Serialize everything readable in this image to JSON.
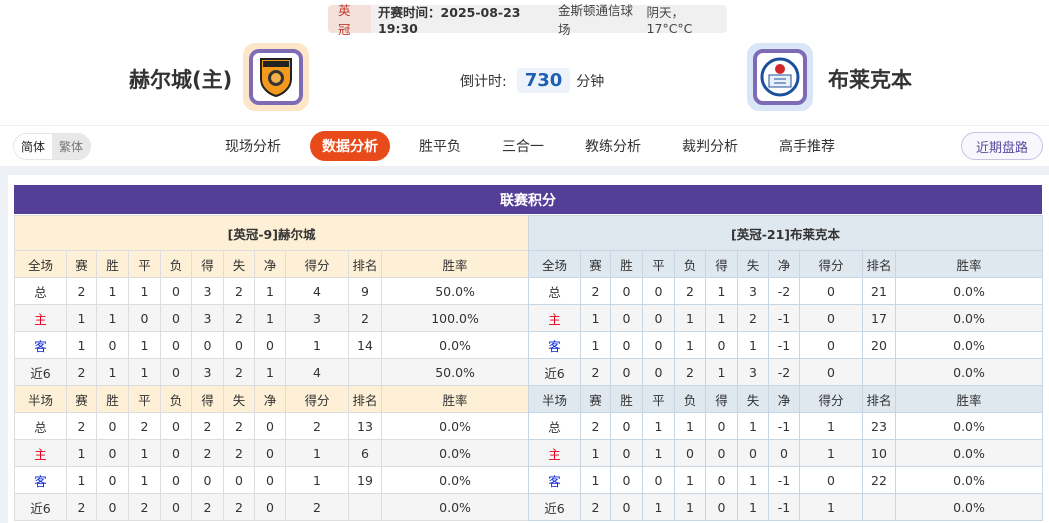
{
  "match": {
    "league": "英冠",
    "time": "开赛时间：2025-08-23 19:30",
    "venue": "金斯顿通信球场",
    "weather": "阴天， 17°C°C"
  },
  "home": {
    "name": "赫尔城(主)",
    "logo_text": "HULL CITY"
  },
  "away": {
    "name": "布莱克本",
    "logo_text": "BLACKBURN ROVERS"
  },
  "countdown": {
    "label": "倒计时:",
    "value": "730",
    "unit": "分钟"
  },
  "lang": {
    "simplified": "简体",
    "traditional": "繁体"
  },
  "tabs": [
    {
      "label": "现场分析"
    },
    {
      "label": "数据分析",
      "active": true
    },
    {
      "label": "胜平负"
    },
    {
      "label": "三合一"
    },
    {
      "label": "教练分析"
    },
    {
      "label": "裁判分析"
    },
    {
      "label": "高手推荐"
    }
  ],
  "recent_button": "近期盘路",
  "section_title": "联赛积分",
  "colors": {
    "accent": "#e84a19",
    "title_bar": "#553e98",
    "home_header": "#fdf0d6",
    "away_header": "#dfe7ef",
    "home_label": "#e0001b",
    "away_label": "#0a2ad6"
  },
  "standings": {
    "home": {
      "title": "[英冠-9]赫尔城",
      "full": {
        "headers": [
          "全场",
          "赛",
          "胜",
          "平",
          "负",
          "得",
          "失",
          "净",
          "得分",
          "排名",
          "胜率"
        ],
        "rows": [
          [
            "总",
            "2",
            "1",
            "1",
            "0",
            "3",
            "2",
            "1",
            "4",
            "9",
            "50.0%"
          ],
          [
            "主",
            "1",
            "1",
            "0",
            "0",
            "3",
            "2",
            "1",
            "3",
            "2",
            "100.0%"
          ],
          [
            "客",
            "1",
            "0",
            "1",
            "0",
            "0",
            "0",
            "0",
            "1",
            "14",
            "0.0%"
          ],
          [
            "近6",
            "2",
            "1",
            "1",
            "0",
            "3",
            "2",
            "1",
            "4",
            "",
            "50.0%"
          ]
        ]
      },
      "half": {
        "headers": [
          "半场",
          "赛",
          "胜",
          "平",
          "负",
          "得",
          "失",
          "净",
          "得分",
          "排名",
          "胜率"
        ],
        "rows": [
          [
            "总",
            "2",
            "0",
            "2",
            "0",
            "2",
            "2",
            "0",
            "2",
            "13",
            "0.0%"
          ],
          [
            "主",
            "1",
            "0",
            "1",
            "0",
            "2",
            "2",
            "0",
            "1",
            "6",
            "0.0%"
          ],
          [
            "客",
            "1",
            "0",
            "1",
            "0",
            "0",
            "0",
            "0",
            "1",
            "19",
            "0.0%"
          ],
          [
            "近6",
            "2",
            "0",
            "2",
            "0",
            "2",
            "2",
            "0",
            "2",
            "",
            "0.0%"
          ]
        ]
      }
    },
    "away": {
      "title": "[英冠-21]布莱克本",
      "full": {
        "headers": [
          "全场",
          "赛",
          "胜",
          "平",
          "负",
          "得",
          "失",
          "净",
          "得分",
          "排名",
          "胜率"
        ],
        "rows": [
          [
            "总",
            "2",
            "0",
            "0",
            "2",
            "1",
            "3",
            "-2",
            "0",
            "21",
            "0.0%"
          ],
          [
            "主",
            "1",
            "0",
            "0",
            "1",
            "1",
            "2",
            "-1",
            "0",
            "17",
            "0.0%"
          ],
          [
            "客",
            "1",
            "0",
            "0",
            "1",
            "0",
            "1",
            "-1",
            "0",
            "20",
            "0.0%"
          ],
          [
            "近6",
            "2",
            "0",
            "0",
            "2",
            "1",
            "3",
            "-2",
            "0",
            "",
            "0.0%"
          ]
        ]
      },
      "half": {
        "headers": [
          "半场",
          "赛",
          "胜",
          "平",
          "负",
          "得",
          "失",
          "净",
          "得分",
          "排名",
          "胜率"
        ],
        "rows": [
          [
            "总",
            "2",
            "0",
            "1",
            "1",
            "0",
            "1",
            "-1",
            "1",
            "23",
            "0.0%"
          ],
          [
            "主",
            "1",
            "0",
            "1",
            "0",
            "0",
            "0",
            "0",
            "1",
            "10",
            "0.0%"
          ],
          [
            "客",
            "1",
            "0",
            "0",
            "1",
            "0",
            "1",
            "-1",
            "0",
            "22",
            "0.0%"
          ],
          [
            "近6",
            "2",
            "0",
            "1",
            "1",
            "0",
            "1",
            "-1",
            "1",
            "",
            "0.0%"
          ]
        ]
      }
    }
  }
}
